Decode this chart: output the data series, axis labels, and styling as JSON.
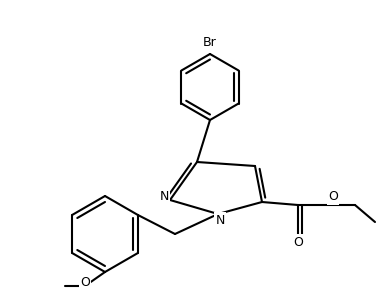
{
  "bg_color": "#ffffff",
  "line_color": "#000000",
  "text_color": "#000000",
  "bond_width": 1.5,
  "figsize": [
    3.78,
    3.02
  ],
  "dpi": 100,
  "label_Br": "Br",
  "label_N_up": "N",
  "label_N_down": "N",
  "label_O_ester_down": "O",
  "label_O_ester_right": "O",
  "label_O_methoxy": "O"
}
